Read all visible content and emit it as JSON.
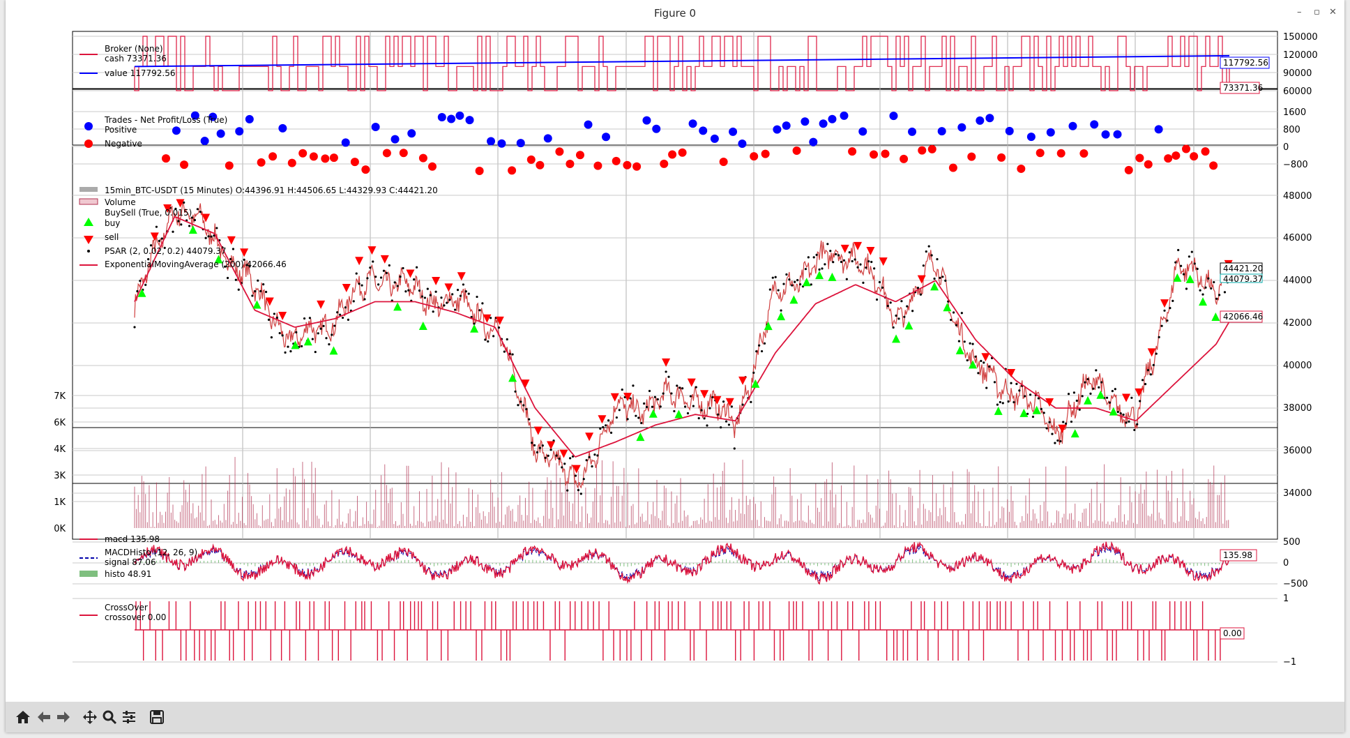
{
  "window": {
    "title": "Figure 0",
    "minimize_icon": "minimize-icon",
    "restore_icon": "restore-icon",
    "close_icon": "close-icon",
    "controls": [
      "–",
      "▫",
      "✕"
    ]
  },
  "toolbar": {
    "buttons": [
      {
        "name": "home-button",
        "icon": "home-icon"
      },
      {
        "name": "back-button",
        "icon": "arrow-left-icon"
      },
      {
        "name": "forward-button",
        "icon": "arrow-right-icon"
      },
      {
        "name": "pan-button",
        "icon": "move-icon"
      },
      {
        "name": "zoom-button",
        "icon": "magnifier-icon"
      },
      {
        "name": "configure-subplots-button",
        "icon": "sliders-icon"
      },
      {
        "name": "save-button",
        "icon": "floppy-disk-icon"
      }
    ]
  },
  "colors": {
    "broker_cash": "#dc143c",
    "broker_value": "#0000ff",
    "positive": "#0000ff",
    "negative": "#ff0000",
    "buy": "#00ff00",
    "sell": "#ff0000",
    "ema": "#dc143c",
    "volume": "#b03050",
    "macd": "#dc143c",
    "signal": "#0000aa",
    "histo": "#7fbf7f",
    "crossover": "#dc143c",
    "grid": "#b0b0b0"
  },
  "chart_data": [
    {
      "type": "line",
      "panel": "broker",
      "title": "",
      "legend_title": "Broker (None)",
      "legend_placement": "upper-left",
      "yticks": [
        "150000",
        "120000",
        "90000",
        "60000"
      ],
      "ylim": [
        55000,
        155000
      ],
      "series": [
        {
          "name": "cash 73371.36",
          "style": "step",
          "levels": [
            60000,
            100000,
            150000
          ],
          "last": 73371.36,
          "last_label": "73371.36"
        },
        {
          "name": "value 117792.56",
          "start": 100000,
          "end": 117792.56,
          "last_label": "117792.56"
        }
      ]
    },
    {
      "type": "scatter",
      "panel": "trades",
      "legend_title": "Trades - Net Profit/Loss (True)",
      "legend_placement": "upper-left",
      "yticks": [
        "1600",
        "800",
        "0",
        "−800"
      ],
      "ylim": [
        -1400,
        1700
      ],
      "series": [
        {
          "name": "Positive",
          "range": [
            100,
            1550
          ]
        },
        {
          "name": "Negative",
          "range": [
            -1200,
            -100
          ]
        }
      ]
    },
    {
      "type": "line",
      "panel": "price",
      "ohlc_label": "15min_BTC-USDT (15 Minutes) O:44396.91 H:44506.65 L:44329.93 C:44421.20",
      "legend_placement": "upper-left",
      "yticks": [
        "48000",
        "46000",
        "44000",
        "42000",
        "40000",
        "38000",
        "36000",
        "34000"
      ],
      "volume_ticks": [
        "7K",
        "6K",
        "4K",
        "3K",
        "1K",
        "0K"
      ],
      "legend": [
        "Volume",
        "BuySell (True, 0.015)",
        "buy",
        "sell",
        "PSAR (2, 0.02, 0.2) 44079.37",
        "ExponentialMovingAverage (200) 42066.46"
      ],
      "x": [
        0,
        30,
        60,
        90,
        120,
        150,
        180,
        210,
        240,
        270,
        300,
        330,
        360,
        390,
        420,
        450,
        480,
        510,
        540,
        570,
        600,
        630,
        660,
        690,
        720,
        750,
        780,
        810,
        820
      ],
      "close": [
        42700,
        47600,
        46000,
        43500,
        41000,
        42300,
        44200,
        43400,
        42900,
        42000,
        36400,
        34300,
        37800,
        38300,
        38600,
        37200,
        43300,
        44800,
        45400,
        42200,
        44800,
        39800,
        38800,
        37000,
        39300,
        37200,
        44600,
        43700,
        44421.2
      ],
      "ema": [
        43000,
        47000,
        46200,
        42600,
        41800,
        42200,
        43000,
        43000,
        42500,
        41800,
        38000,
        35700,
        36400,
        37200,
        37700,
        37400,
        40600,
        42900,
        43800,
        43000,
        44000,
        41200,
        39300,
        38000,
        38000,
        37400,
        39200,
        41000,
        42066.46
      ],
      "last_labels": [
        "44421.20",
        "44079.37",
        "42066.46"
      ]
    },
    {
      "type": "line",
      "panel": "macd",
      "legend_placement": "upper-left",
      "yticks": [
        "500",
        "0",
        "−500"
      ],
      "ylim": [
        -800,
        800
      ],
      "series": [
        {
          "name": "macd 135.98",
          "last": 135.98,
          "last_label": "135.98"
        },
        {
          "name": "MACDHisto (12, 26, 9)"
        },
        {
          "name": "signal 87.06"
        },
        {
          "name": "histo 48.91"
        }
      ]
    },
    {
      "type": "line",
      "panel": "crossover",
      "legend_title": "CrossOver",
      "legend_placement": "upper-left",
      "yticks": [
        "1",
        "−1"
      ],
      "ylim": [
        -1,
        1
      ],
      "series": [
        {
          "name": "crossover 0.00",
          "last": 0,
          "last_label": "0.00"
        }
      ]
    }
  ]
}
